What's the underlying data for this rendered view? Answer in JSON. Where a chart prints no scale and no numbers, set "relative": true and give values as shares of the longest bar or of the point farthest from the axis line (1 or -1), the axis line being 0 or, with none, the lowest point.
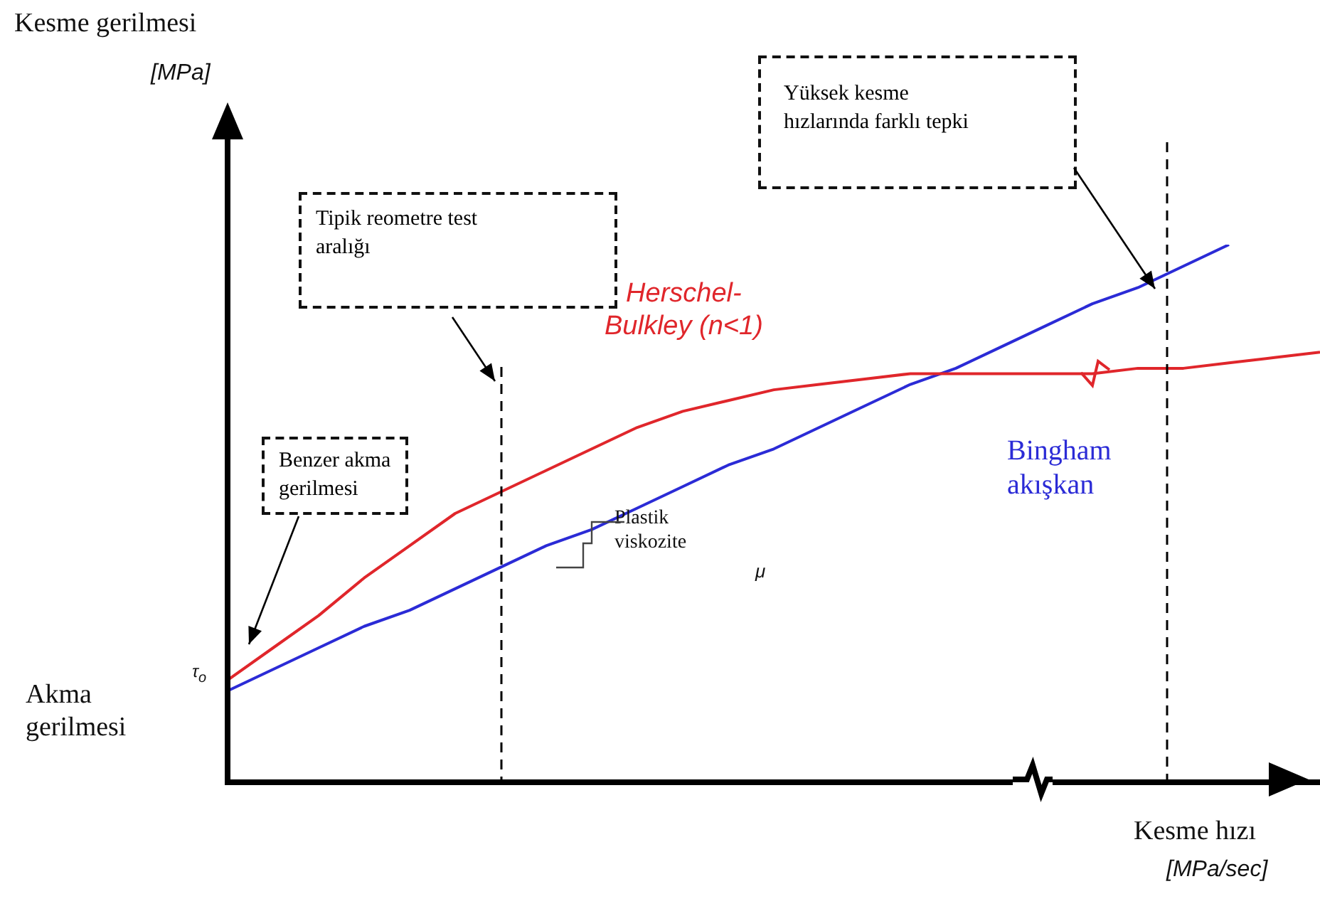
{
  "chart_data": {
    "type": "line",
    "relative": true,
    "xlabel": "Kesme hızı\n[MPa/sec]",
    "categories": [
      null,
      null,
      null,
      null,
      null,
      null,
      null,
      null,
      null,
      null,
      null,
      null,
      null,
      null,
      null,
      null,
      null,
      null,
      null,
      null,
      null,
      null,
      null,
      null,
      null
    ],
    "series": [
      {
        "name": "Herschel-\nBulkley (n<1)",
        "color": "#e0262b",
        "values": [
          0.19,
          0.25,
          0.31,
          0.38,
          0.44,
          0.5,
          0.54,
          0.58,
          0.62,
          0.66,
          0.69,
          0.71,
          0.73,
          0.74,
          0.75,
          0.76,
          0.76,
          0.76,
          0.76,
          0.76,
          0.77,
          0.77,
          0.78,
          0.79,
          0.8
        ]
      },
      {
        "name": "Bingham\nakışkan",
        "color": "#2b2bd6",
        "values": [
          0.17,
          0.21,
          0.25,
          0.29,
          0.32,
          0.36,
          0.4,
          0.44,
          0.47,
          0.51,
          0.55,
          0.59,
          0.62,
          0.66,
          0.7,
          0.74,
          0.77,
          0.81,
          0.85,
          0.89,
          0.92,
          0.96,
          1,
          null,
          null
        ]
      }
    ],
    "annotations": [
      "Akma\ngerilmesi",
      "τ$_{o}$",
      "Benzer akma\ngerilmesi",
      "Tipik reometre test\naralığı",
      "Yüksek kesme\nhızlarında farklı tepki",
      "Plastik\nviskozite",
      "μ",
      "Kesme gerilmesi\n[MPa]"
    ],
    "marker": "none",
    "line_style": "solid",
    "legend": false
  }
}
